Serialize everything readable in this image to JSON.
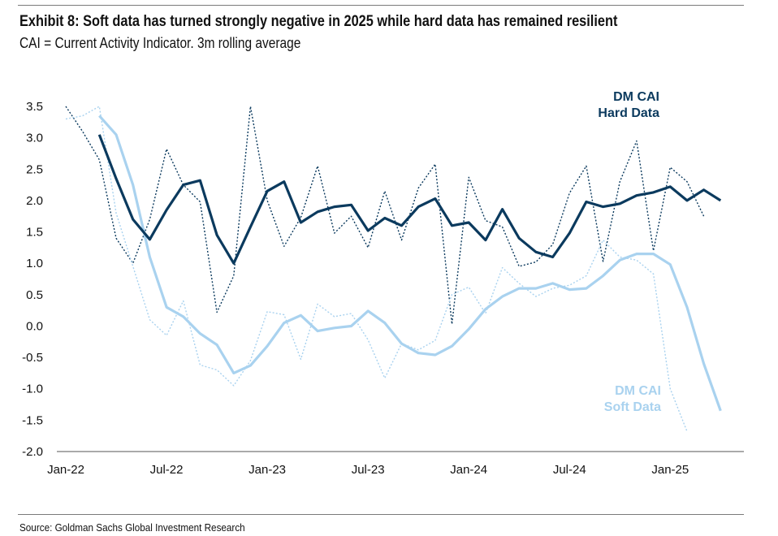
{
  "title": "Exhibit 8: Soft data has turned strongly negative in 2025 while hard data has remained resilient",
  "subtitle": "CAI = Current Activity Indicator. 3m rolling average",
  "source": "Source: Goldman Sachs Global Investment Research",
  "chart_data": {
    "type": "line",
    "title": "Exhibit 8: Soft data has turned strongly negative in 2025 while hard data has remained resilient",
    "xlabel": "",
    "ylabel": "",
    "ylim": [
      -2.0,
      3.5
    ],
    "yticks": [
      "-2.0",
      "-1.5",
      "-1.0",
      "-0.5",
      "0.0",
      "0.5",
      "1.0",
      "1.5",
      "2.0",
      "2.5",
      "3.0",
      "3.5"
    ],
    "ytick_values": [
      -2.0,
      -1.5,
      -1.0,
      -0.5,
      0.0,
      0.5,
      1.0,
      1.5,
      2.0,
      2.5,
      3.0,
      3.5
    ],
    "xlim": [
      0,
      40
    ],
    "xticks": [
      {
        "label": "Jan-22",
        "month": 0
      },
      {
        "label": "Jul-22",
        "month": 6
      },
      {
        "label": "Jan-23",
        "month": 12
      },
      {
        "label": "Jul-23",
        "month": 18
      },
      {
        "label": "Jan-24",
        "month": 24
      },
      {
        "label": "Jul-24",
        "month": 30
      },
      {
        "label": "Jan-25",
        "month": 36
      }
    ],
    "colors": {
      "hard": "#0b3a5e",
      "soft": "#a9d2ef"
    },
    "legend": {
      "hard": [
        "DM CAI",
        "Hard Data"
      ],
      "soft": [
        "DM CAI",
        "Soft Data"
      ]
    },
    "series": [
      {
        "name": "DM CAI Hard Data (3m avg)",
        "role": "hard-avg",
        "start_month": 2,
        "values": [
          3.05,
          2.35,
          1.7,
          1.38,
          1.85,
          2.25,
          2.32,
          1.45,
          1.0,
          1.58,
          2.15,
          2.3,
          1.65,
          1.82,
          1.9,
          1.93,
          1.52,
          1.72,
          1.6,
          1.9,
          2.03,
          1.6,
          1.65,
          1.37,
          1.86,
          1.4,
          1.18,
          1.1,
          1.48,
          1.98,
          1.9,
          1.95,
          2.08,
          2.13,
          2.22,
          2.0,
          2.17,
          2.0
        ]
      },
      {
        "name": "DM CAI Hard Data (monthly)",
        "role": "hard-monthly",
        "start_month": 0,
        "values": [
          3.5,
          3.1,
          2.65,
          1.4,
          1.0,
          1.7,
          2.82,
          2.25,
          1.98,
          0.22,
          0.8,
          3.5,
          2.0,
          1.27,
          1.73,
          2.55,
          1.48,
          1.75,
          1.25,
          2.15,
          1.37,
          2.2,
          2.58,
          0.03,
          2.37,
          1.68,
          1.58,
          0.95,
          1.02,
          1.3,
          2.12,
          2.55,
          1.03,
          2.3,
          2.95,
          1.2,
          2.53,
          2.3,
          1.75
        ]
      },
      {
        "name": "DM CAI Soft Data (3m avg)",
        "role": "soft-avg",
        "start_month": 2,
        "values": [
          3.35,
          3.05,
          2.25,
          1.1,
          0.3,
          0.15,
          -0.12,
          -0.3,
          -0.75,
          -0.63,
          -0.32,
          0.05,
          0.17,
          -0.08,
          -0.03,
          0.0,
          0.24,
          0.05,
          -0.28,
          -0.43,
          -0.46,
          -0.32,
          -0.05,
          0.27,
          0.47,
          0.6,
          0.6,
          0.68,
          0.58,
          0.6,
          0.8,
          1.05,
          1.15,
          1.15,
          0.98,
          0.3,
          -0.6,
          -1.35
        ]
      },
      {
        "name": "DM CAI Soft Data (monthly)",
        "role": "soft-monthly",
        "start_month": 0,
        "values": [
          3.3,
          3.35,
          3.5,
          1.8,
          0.95,
          0.1,
          -0.15,
          0.4,
          -0.62,
          -0.7,
          -0.95,
          -0.55,
          0.23,
          0.18,
          -0.53,
          0.35,
          0.15,
          0.2,
          -0.22,
          -0.83,
          -0.28,
          -0.38,
          -0.23,
          0.5,
          0.62,
          0.2,
          0.93,
          0.68,
          0.47,
          0.6,
          0.65,
          0.8,
          1.37,
          1.1,
          1.05,
          0.83,
          -1.0,
          -1.68
        ]
      }
    ]
  }
}
